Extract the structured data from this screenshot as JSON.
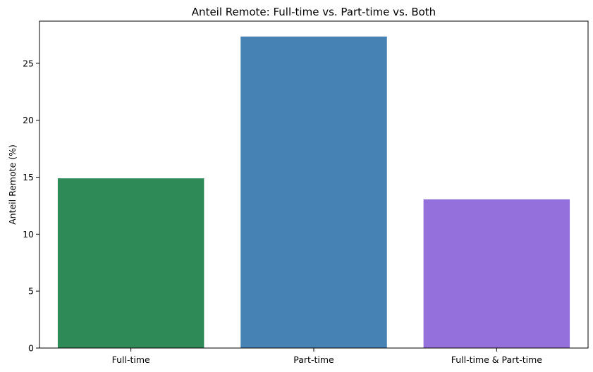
{
  "chart_data": {
    "type": "bar",
    "title": "Anteil Remote: Full-time vs. Part-time vs. Both",
    "xlabel": "",
    "ylabel": "Anteil Remote (%)",
    "categories": [
      "Full-time",
      "Part-time",
      "Full-time & Part-time"
    ],
    "values": [
      14.9,
      27.35,
      13.05
    ],
    "colors": [
      "#2e8b57",
      "#4682b4",
      "#9370db"
    ],
    "ylim": [
      0,
      28.7
    ],
    "yticks": [
      0,
      5,
      10,
      15,
      20,
      25
    ],
    "grid": false,
    "legend": "none"
  }
}
